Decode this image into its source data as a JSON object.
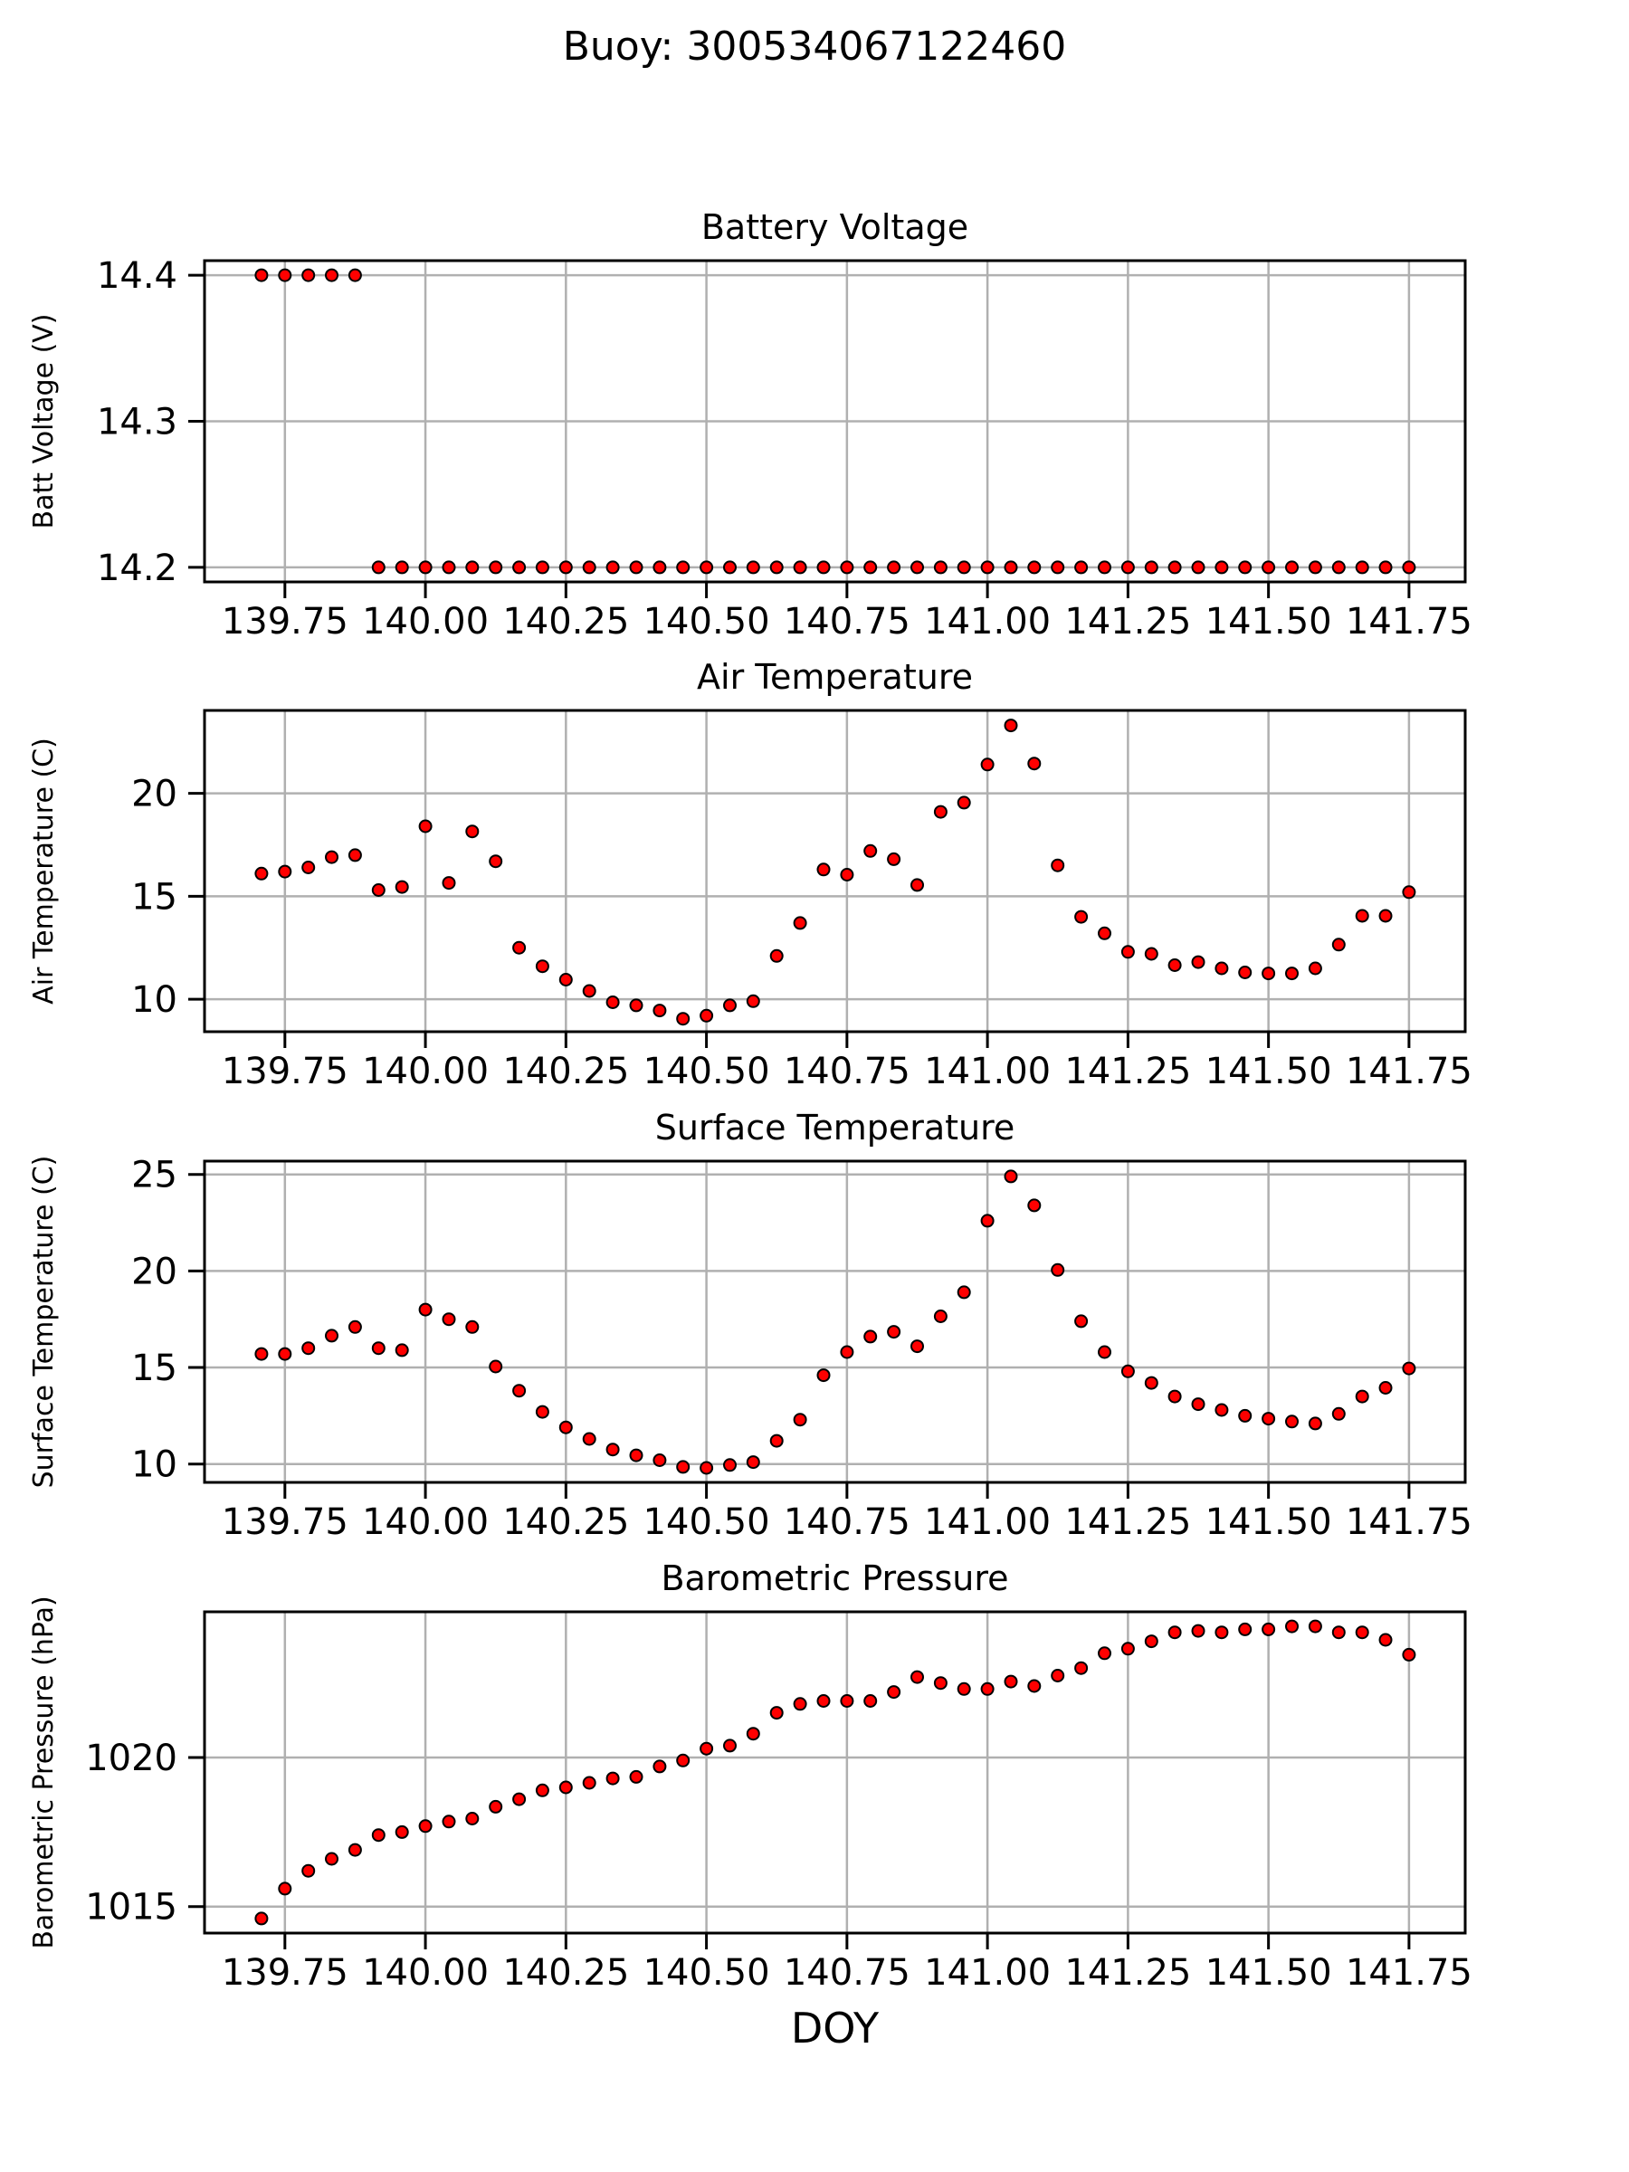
{
  "page": {
    "title": "Buoy: 300534067122460"
  },
  "style": {
    "background": "#ffffff",
    "marker_color": "#ff0000",
    "marker_edge_color": "#000000",
    "grid_color": "#b0b0b0",
    "axis_color": "#000000",
    "text_color": "#000000"
  },
  "chart_data": [
    {
      "type": "scatter",
      "title": "Battery Voltage",
      "ylabel": "Batt Voltage (V)",
      "xlabel": "",
      "grid": true,
      "legend": false,
      "xlim": [
        139.607,
        141.85
      ],
      "ylim": [
        14.19,
        14.41
      ],
      "xticks": [
        139.75,
        140.0,
        140.25,
        140.5,
        140.75,
        141.0,
        141.25,
        141.5,
        141.75
      ],
      "xtick_labels": [
        "139.75",
        "140.00",
        "140.25",
        "140.50",
        "140.75",
        "141.00",
        "141.25",
        "141.50",
        "141.75"
      ],
      "yticks": [
        14.2,
        14.3,
        14.4
      ],
      "ytick_labels": [
        "14.2",
        "14.3",
        "14.4"
      ],
      "x": [
        139.7083,
        139.75,
        139.7917,
        139.8333,
        139.875,
        139.9167,
        139.9583,
        140.0,
        140.0417,
        140.0833,
        140.125,
        140.1667,
        140.2083,
        140.25,
        140.2917,
        140.3333,
        140.375,
        140.4167,
        140.4583,
        140.5,
        140.5417,
        140.5833,
        140.625,
        140.6667,
        140.7083,
        140.75,
        140.7917,
        140.8333,
        140.875,
        140.9167,
        140.9583,
        141.0,
        141.0417,
        141.0833,
        141.125,
        141.1667,
        141.2083,
        141.25,
        141.2917,
        141.3333,
        141.375,
        141.4167,
        141.4583,
        141.5,
        141.5417,
        141.5833,
        141.625,
        141.6667,
        141.7083,
        141.75
      ],
      "y": [
        14.4,
        14.4,
        14.4,
        14.4,
        14.4,
        14.2,
        14.2,
        14.2,
        14.2,
        14.2,
        14.2,
        14.2,
        14.2,
        14.2,
        14.2,
        14.2,
        14.2,
        14.2,
        14.2,
        14.2,
        14.2,
        14.2,
        14.2,
        14.2,
        14.2,
        14.2,
        14.2,
        14.2,
        14.2,
        14.2,
        14.2,
        14.2,
        14.2,
        14.2,
        14.2,
        14.2,
        14.2,
        14.2,
        14.2,
        14.2,
        14.2,
        14.2,
        14.2,
        14.2,
        14.2,
        14.2,
        14.2,
        14.2,
        14.2,
        14.2
      ]
    },
    {
      "type": "scatter",
      "title": "Air Temperature",
      "ylabel": "Air Temperature (C)",
      "xlabel": "",
      "grid": true,
      "legend": false,
      "xlim": [
        139.607,
        141.85
      ],
      "ylim": [
        8.42,
        24.03
      ],
      "xticks": [
        139.75,
        140.0,
        140.25,
        140.5,
        140.75,
        141.0,
        141.25,
        141.5,
        141.75
      ],
      "xtick_labels": [
        "139.75",
        "140.00",
        "140.25",
        "140.50",
        "140.75",
        "141.00",
        "141.25",
        "141.50",
        "141.75"
      ],
      "yticks": [
        10,
        15,
        20
      ],
      "ytick_labels": [
        "10",
        "15",
        "20"
      ],
      "x": [
        139.7083,
        139.75,
        139.7917,
        139.8333,
        139.875,
        139.9167,
        139.9583,
        140.0,
        140.0417,
        140.0833,
        140.125,
        140.1667,
        140.2083,
        140.25,
        140.2917,
        140.3333,
        140.375,
        140.4167,
        140.4583,
        140.5,
        140.5417,
        140.5833,
        140.625,
        140.6667,
        140.7083,
        140.75,
        140.7917,
        140.8333,
        140.875,
        140.9167,
        140.9583,
        141.0,
        141.0417,
        141.0833,
        141.125,
        141.1667,
        141.2083,
        141.25,
        141.2917,
        141.3333,
        141.375,
        141.4167,
        141.4583,
        141.5,
        141.5417,
        141.5833,
        141.625,
        141.6667,
        141.7083,
        141.75
      ],
      "y": [
        16.1,
        16.2,
        16.4,
        16.9,
        17.0,
        15.3,
        15.45,
        18.4,
        15.65,
        18.15,
        16.7,
        12.5,
        11.6,
        10.95,
        10.4,
        9.85,
        9.7,
        9.45,
        9.05,
        9.2,
        9.7,
        9.9,
        12.1,
        13.7,
        16.3,
        16.05,
        17.2,
        16.8,
        15.55,
        19.1,
        19.55,
        21.4,
        23.3,
        21.45,
        16.5,
        14.0,
        13.2,
        12.3,
        12.2,
        11.65,
        11.8,
        11.5,
        11.3,
        11.25,
        11.25,
        11.5,
        12.65,
        14.05,
        14.05,
        15.2
      ]
    },
    {
      "type": "scatter",
      "title": "Surface Temperature",
      "ylabel": "Surface Temperature (C)",
      "xlabel": "",
      "grid": true,
      "legend": false,
      "xlim": [
        139.607,
        141.85
      ],
      "ylim": [
        9.05,
        25.69
      ],
      "xticks": [
        139.75,
        140.0,
        140.25,
        140.5,
        140.75,
        141.0,
        141.25,
        141.5,
        141.75
      ],
      "xtick_labels": [
        "139.75",
        "140.00",
        "140.25",
        "140.50",
        "140.75",
        "141.00",
        "141.25",
        "141.50",
        "141.75"
      ],
      "yticks": [
        10,
        15,
        20,
        25
      ],
      "ytick_labels": [
        "10",
        "15",
        "20",
        "25"
      ],
      "x": [
        139.7083,
        139.75,
        139.7917,
        139.8333,
        139.875,
        139.9167,
        139.9583,
        140.0,
        140.0417,
        140.0833,
        140.125,
        140.1667,
        140.2083,
        140.25,
        140.2917,
        140.3333,
        140.375,
        140.4167,
        140.4583,
        140.5,
        140.5417,
        140.5833,
        140.625,
        140.6667,
        140.7083,
        140.75,
        140.7917,
        140.8333,
        140.875,
        140.9167,
        140.9583,
        141.0,
        141.0417,
        141.0833,
        141.125,
        141.1667,
        141.2083,
        141.25,
        141.2917,
        141.3333,
        141.375,
        141.4167,
        141.4583,
        141.5,
        141.5417,
        141.5833,
        141.625,
        141.6667,
        141.7083,
        141.75
      ],
      "y": [
        15.7,
        15.7,
        16.0,
        16.65,
        17.1,
        16.0,
        15.9,
        18.0,
        17.5,
        17.1,
        15.05,
        13.8,
        12.7,
        11.9,
        11.3,
        10.75,
        10.45,
        10.2,
        9.85,
        9.8,
        9.95,
        10.1,
        11.2,
        12.3,
        14.6,
        15.8,
        16.6,
        16.85,
        16.1,
        17.65,
        18.9,
        22.6,
        24.9,
        23.4,
        20.05,
        17.4,
        15.8,
        14.8,
        14.2,
        13.5,
        13.1,
        12.8,
        12.5,
        12.35,
        12.2,
        12.1,
        12.6,
        13.5,
        13.95,
        14.95
      ]
    },
    {
      "type": "scatter",
      "title": "Barometric Pressure",
      "ylabel": "Barometric Pressure (hPa)",
      "xlabel": "DOY",
      "grid": true,
      "legend": false,
      "xlim": [
        139.607,
        141.85
      ],
      "ylim": [
        1014.11,
        1024.89
      ],
      "xticks": [
        139.75,
        140.0,
        140.25,
        140.5,
        140.75,
        141.0,
        141.25,
        141.5,
        141.75
      ],
      "xtick_labels": [
        "139.75",
        "140.00",
        "140.25",
        "140.50",
        "140.75",
        "141.00",
        "141.25",
        "141.50",
        "141.75"
      ],
      "yticks": [
        1015,
        1020
      ],
      "ytick_labels": [
        "1015",
        "1020"
      ],
      "x": [
        139.7083,
        139.75,
        139.7917,
        139.8333,
        139.875,
        139.9167,
        139.9583,
        140.0,
        140.0417,
        140.0833,
        140.125,
        140.1667,
        140.2083,
        140.25,
        140.2917,
        140.3333,
        140.375,
        140.4167,
        140.4583,
        140.5,
        140.5417,
        140.5833,
        140.625,
        140.6667,
        140.7083,
        140.75,
        140.7917,
        140.8333,
        140.875,
        140.9167,
        140.9583,
        141.0,
        141.0417,
        141.0833,
        141.125,
        141.1667,
        141.2083,
        141.25,
        141.2917,
        141.3333,
        141.375,
        141.4167,
        141.4583,
        141.5,
        141.5417,
        141.5833,
        141.625,
        141.6667,
        141.7083,
        141.75
      ],
      "y": [
        1014.6,
        1015.6,
        1016.2,
        1016.6,
        1016.9,
        1017.4,
        1017.5,
        1017.7,
        1017.85,
        1017.95,
        1018.35,
        1018.6,
        1018.9,
        1019.0,
        1019.15,
        1019.3,
        1019.35,
        1019.7,
        1019.9,
        1020.3,
        1020.4,
        1020.8,
        1021.5,
        1021.8,
        1021.9,
        1021.9,
        1021.9,
        1022.2,
        1022.7,
        1022.5,
        1022.3,
        1022.3,
        1022.55,
        1022.4,
        1022.75,
        1023.0,
        1023.5,
        1023.65,
        1023.9,
        1024.2,
        1024.25,
        1024.2,
        1024.3,
        1024.3,
        1024.4,
        1024.4,
        1024.2,
        1024.2,
        1023.95,
        1023.45
      ]
    }
  ]
}
